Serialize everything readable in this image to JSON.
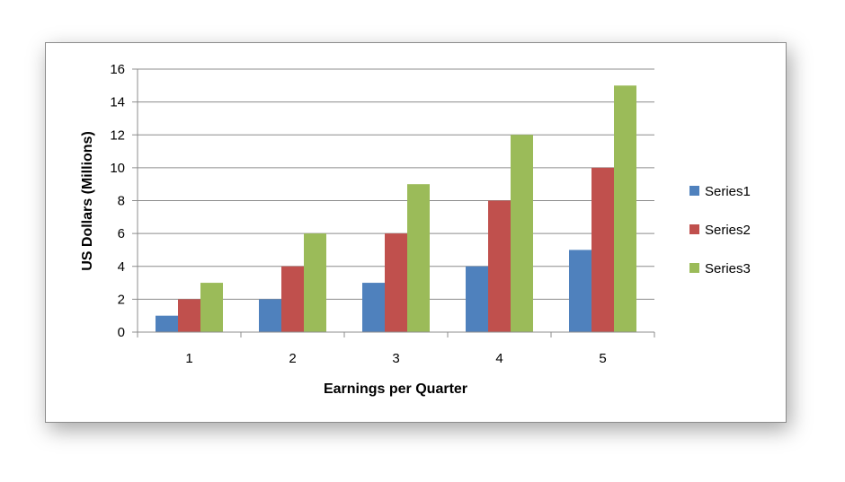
{
  "chart_data": {
    "type": "bar",
    "categories": [
      "1",
      "2",
      "3",
      "4",
      "5"
    ],
    "series": [
      {
        "name": "Series1",
        "values": [
          1,
          2,
          3,
          4,
          5
        ],
        "color": "#4F81BD"
      },
      {
        "name": "Series2",
        "values": [
          2,
          4,
          6,
          8,
          10
        ],
        "color": "#C0504D"
      },
      {
        "name": "Series3",
        "values": [
          3,
          6,
          9,
          12,
          15
        ],
        "color": "#9BBB59"
      }
    ],
    "xlabel": "Earnings per Quarter",
    "ylabel": "US Dollars (Millions)",
    "ylim": [
      0,
      16
    ],
    "yticks": [
      0,
      2,
      4,
      6,
      8,
      10,
      12,
      14,
      16
    ],
    "grid": true,
    "legend": "right"
  }
}
